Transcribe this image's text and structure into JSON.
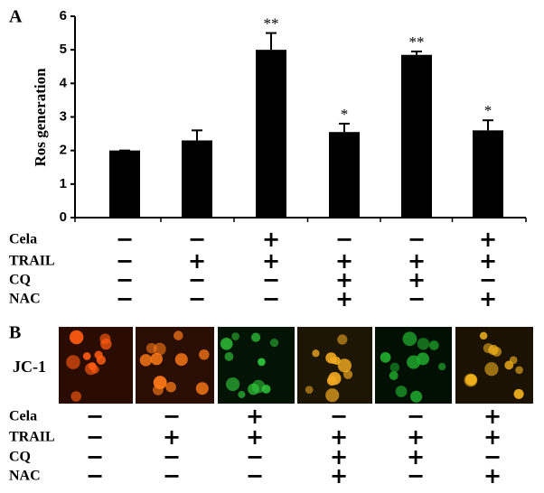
{
  "chart_data": {
    "type": "bar",
    "panel_label": "A",
    "ylabel": "Ros generation",
    "values": [
      2.0,
      2.3,
      5.0,
      2.55,
      4.85,
      2.6
    ],
    "errors": [
      0.0,
      0.3,
      0.5,
      0.25,
      0.1,
      0.3
    ],
    "annotations": [
      "",
      "",
      "**",
      "*",
      "**",
      "*"
    ],
    "color": "#000000",
    "ylim": [
      0,
      6
    ],
    "yticks": [
      0,
      1,
      2,
      3,
      4,
      5,
      6
    ],
    "treatments": [
      {
        "name": "Cela",
        "signs": [
          "−",
          "−",
          "+",
          "−",
          "−",
          "+"
        ]
      },
      {
        "name": "TRAIL",
        "signs": [
          "−",
          "+",
          "+",
          "+",
          "+",
          "+"
        ]
      },
      {
        "name": "CQ",
        "signs": [
          "−",
          "−",
          "−",
          "+",
          "+",
          "−"
        ]
      },
      {
        "name": "NAC",
        "signs": [
          "−",
          "−",
          "−",
          "+",
          "−",
          "+"
        ]
      }
    ]
  },
  "panel_b": {
    "label": "B",
    "row_label": "JC-1",
    "treatments": [
      {
        "name": "Cela",
        "signs": [
          "−",
          "−",
          "+",
          "−",
          "−",
          "+"
        ]
      },
      {
        "name": "TRAIL",
        "signs": [
          "−",
          "+",
          "+",
          "+",
          "+",
          "+"
        ]
      },
      {
        "name": "CQ",
        "signs": [
          "−",
          "−",
          "−",
          "+",
          "+",
          "−"
        ]
      },
      {
        "name": "NAC",
        "signs": [
          "−",
          "−",
          "−",
          "+",
          "−",
          "+"
        ]
      }
    ]
  }
}
